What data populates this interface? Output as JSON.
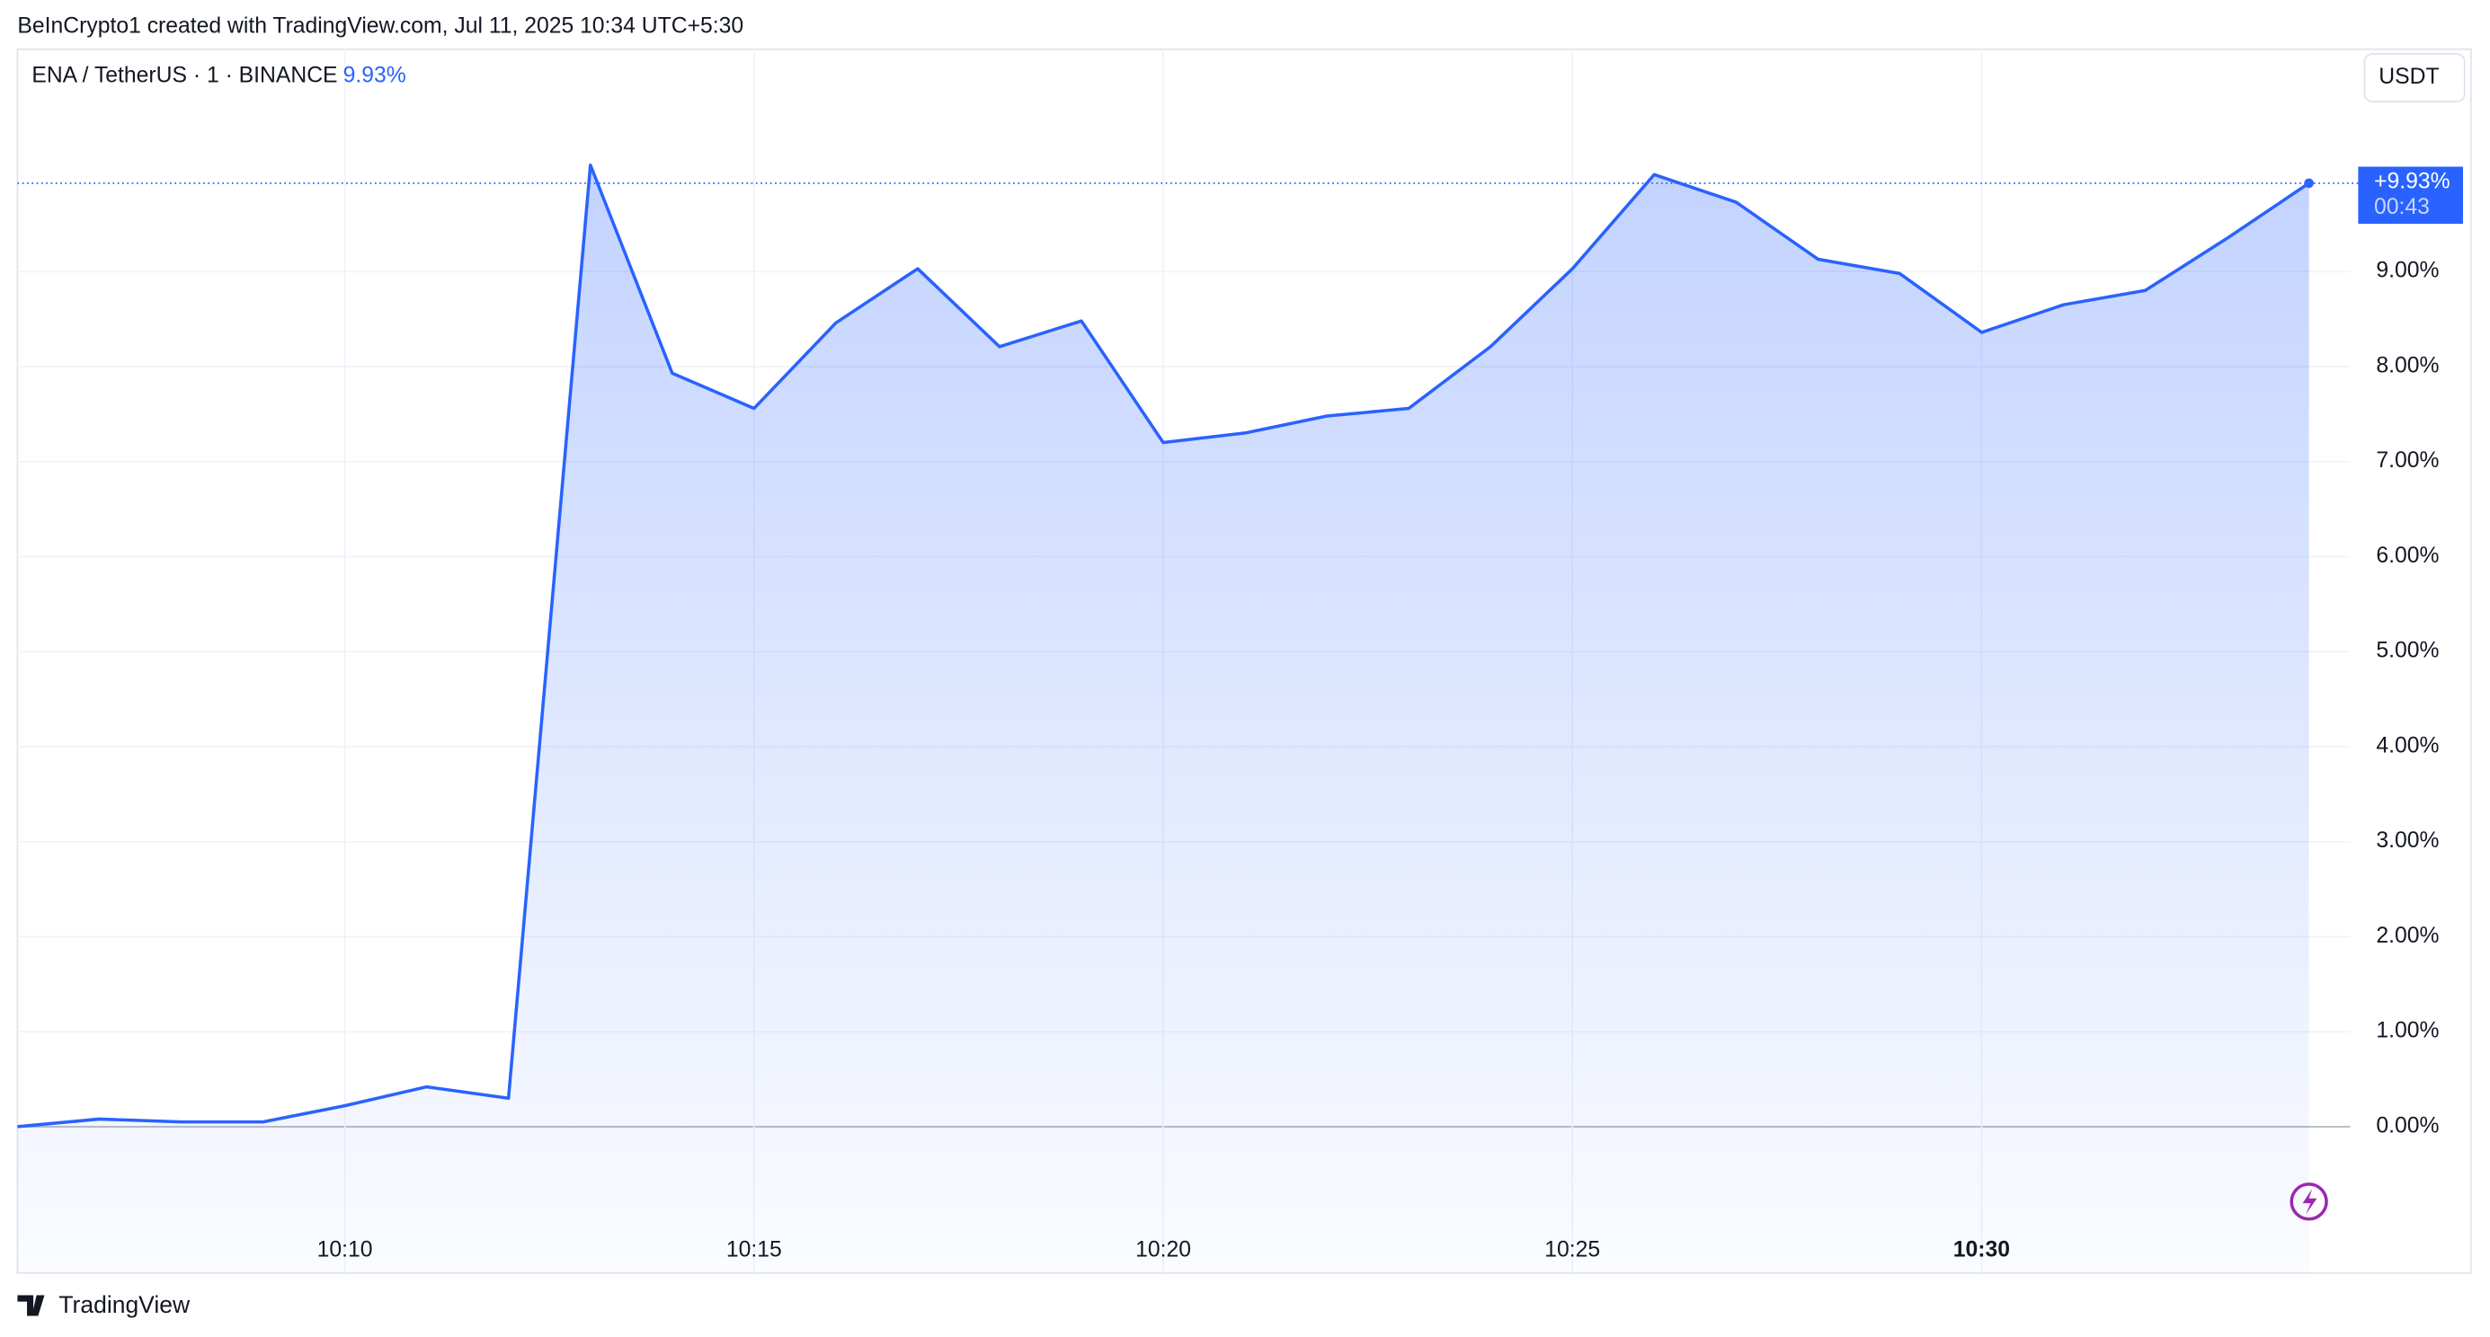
{
  "header": {
    "credit": "BeInCrypto1 created with TradingView.com, Jul 11, 2025 10:34 UTC+5:30",
    "symbol": "ENA / TetherUS · 1 · BINANCE",
    "change": "9.93%",
    "currency": "USDT",
    "last_label": "+9.93%",
    "countdown": "00:43",
    "brand": "TradingView"
  },
  "chart_data": {
    "type": "area",
    "categories": [
      null,
      null,
      null,
      null,
      "10:10",
      null,
      null,
      null,
      null,
      "10:15",
      null,
      null,
      null,
      null,
      "10:20",
      null,
      null,
      null,
      null,
      "10:25",
      null,
      null,
      null,
      null,
      "10:30",
      null,
      null,
      null,
      null
    ],
    "series": [
      {
        "name": "ENA / TetherUS",
        "color": "#2962ff",
        "values": [
          0.0,
          0.08,
          0.05,
          0.05,
          0.22,
          0.42,
          0.3,
          10.12,
          7.93,
          7.56,
          8.46,
          9.03,
          8.21,
          8.48,
          7.2,
          7.3,
          7.48,
          7.56,
          8.21,
          9.03,
          10.02,
          9.73,
          9.13,
          8.98,
          8.36,
          8.65,
          8.8,
          9.35,
          9.93
        ]
      }
    ],
    "ylim": [
      -1.54,
      11.34
    ],
    "yticks": [
      {
        "value": 0,
        "label": "0.00%"
      },
      {
        "value": 1,
        "label": "1.00%"
      },
      {
        "value": 2,
        "label": "2.00%"
      },
      {
        "value": 3,
        "label": "3.00%"
      },
      {
        "value": 4,
        "label": "4.00%"
      },
      {
        "value": 5,
        "label": "5.00%"
      },
      {
        "value": 6,
        "label": "6.00%"
      },
      {
        "value": 7,
        "label": "7.00%"
      },
      {
        "value": 8,
        "label": "8.00%"
      },
      {
        "value": 9,
        "label": "9.00%"
      }
    ],
    "grid": true
  }
}
